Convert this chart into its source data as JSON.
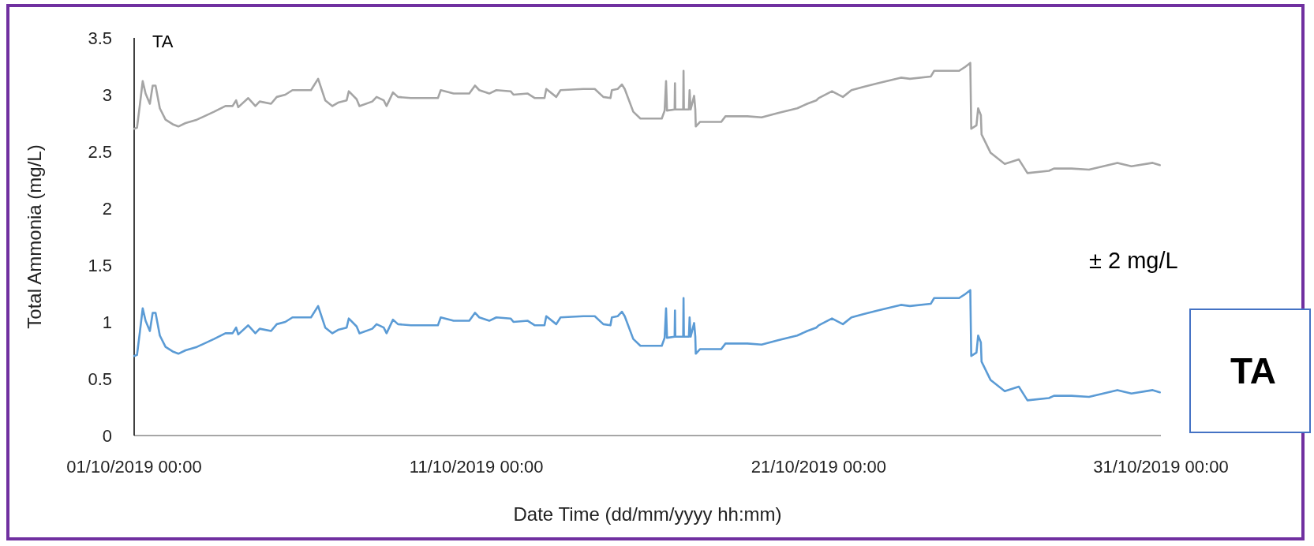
{
  "chart_data": {
    "type": "line",
    "xlabel": "Date Time (dd/mm/yyyy hh:mm)",
    "ylabel": "Total Ammonia (mg/L)",
    "annotations": [
      "TA",
      "± 2 mg/L",
      "TA"
    ],
    "xlim": [
      "2019-10-01T00:00",
      "2019-10-31T00:00"
    ],
    "xticks": [
      {
        "value": "2019-10-01T00:00",
        "label": "01/10/2019 00:00"
      },
      {
        "value": "2019-10-11T00:00",
        "label": "11/10/2019 00:00"
      },
      {
        "value": "2019-10-21T00:00",
        "label": "21/10/2019 00:00"
      },
      {
        "value": "2019-10-31T00:00",
        "label": "31/10/2019 00:00"
      }
    ],
    "ylim": [
      0,
      3.5
    ],
    "yticks": [
      0,
      0.5,
      1,
      1.5,
      2,
      2.5,
      3,
      3.5
    ],
    "grid": false,
    "marker": "none",
    "line_style": "solid",
    "x": [
      "2019-10-01T00:00",
      "2019-10-01T02:00",
      "2019-10-01T04:00",
      "2019-10-01T06:00",
      "2019-10-01T08:00",
      "2019-10-01T11:00",
      "2019-10-01T13:00",
      "2019-10-01T15:00",
      "2019-10-01T18:00",
      "2019-10-01T22:00",
      "2019-10-02T03:00",
      "2019-10-02T07:00",
      "2019-10-02T12:00",
      "2019-10-02T20:00",
      "2019-10-03T08:00",
      "2019-10-03T16:00",
      "2019-10-03T21:00",
      "2019-10-03T23:30",
      "2019-10-04T01:00",
      "2019-10-04T08:00",
      "2019-10-04T13:00",
      "2019-10-04T16:00",
      "2019-10-05T00:00",
      "2019-10-05T04:00",
      "2019-10-05T10:00",
      "2019-10-05T15:00",
      "2019-10-06T04:00",
      "2019-10-06T09:00",
      "2019-10-06T14:00",
      "2019-10-06T19:00",
      "2019-10-06T23:00",
      "2019-10-07T05:00",
      "2019-10-07T06:30",
      "2019-10-07T12:00",
      "2019-10-07T14:00",
      "2019-10-07T23:00",
      "2019-10-08T02:00",
      "2019-10-08T07:00",
      "2019-10-08T09:00",
      "2019-10-08T13:30",
      "2019-10-08T17:00",
      "2019-10-09T02:00",
      "2019-10-09T21:00",
      "2019-10-09T23:00",
      "2019-10-10T08:00",
      "2019-10-10T19:00",
      "2019-10-10T23:00",
      "2019-10-11T02:00",
      "2019-10-11T09:00",
      "2019-10-11T14:00",
      "2019-10-12T00:00",
      "2019-10-12T02:00",
      "2019-10-12T12:00",
      "2019-10-12T17:00",
      "2019-10-12T23:45",
      "2019-10-13T01:00",
      "2019-10-13T08:00",
      "2019-10-13T11:00",
      "2019-10-14T03:00",
      "2019-10-14T11:00",
      "2019-10-14T17:00",
      "2019-10-14T22:00",
      "2019-10-14T23:00",
      "2019-10-15T03:00",
      "2019-10-15T06:00",
      "2019-10-15T08:00",
      "2019-10-15T14:00",
      "2019-10-15T19:00",
      "2019-10-16T10:00",
      "2019-10-16T12:00",
      "2019-10-16T13:00",
      "2019-10-16T13:40",
      "2019-10-16T19:00",
      "2019-10-16T19:15",
      "2019-10-16T19:30",
      "2019-10-17T01:00",
      "2019-10-17T01:15",
      "2019-10-17T01:30",
      "2019-10-17T05:00",
      "2019-10-17T05:30",
      "2019-10-17T06:15",
      "2019-10-17T08:40",
      "2019-10-17T09:30",
      "2019-10-17T09:50",
      "2019-10-17T12:45",
      "2019-10-18T03:40",
      "2019-10-18T06:40",
      "2019-10-18T22:00",
      "2019-10-19T08:00",
      "2019-10-19T20:00",
      "2019-10-20T09:00",
      "2019-10-20T16:00",
      "2019-10-20T22:20",
      "2019-10-21T00:00",
      "2019-10-21T09:20",
      "2019-10-21T17:00",
      "2019-10-21T23:00",
      "2019-10-22T07:40",
      "2019-10-22T17:30",
      "2019-10-23T09:40",
      "2019-10-23T16:00",
      "2019-10-24T06:40",
      "2019-10-24T09:00",
      "2019-10-25T02:30",
      "2019-10-25T06:15",
      "2019-10-25T10:20",
      "2019-10-25T11:00",
      "2019-10-25T14:40",
      "2019-10-25T15:50",
      "2019-10-25T17:45",
      "2019-10-25T18:15",
      "2019-10-26T00:30",
      "2019-10-26T10:30",
      "2019-10-26T20:25",
      "2019-10-27T02:25",
      "2019-10-27T17:30",
      "2019-10-27T21:00",
      "2019-10-28T09:20",
      "2019-10-28T21:35",
      "2019-10-29T17:30",
      "2019-10-30T03:20",
      "2019-10-30T18:15",
      "2019-10-30T23:15"
    ],
    "series": [
      {
        "color": "#a5a5a5",
        "values": [
          2.7,
          2.71,
          2.91,
          3.12,
          3.01,
          2.92,
          3.08,
          3.08,
          2.88,
          2.78,
          2.74,
          2.72,
          2.75,
          2.78,
          2.85,
          2.9,
          2.9,
          2.95,
          2.89,
          2.97,
          2.9,
          2.94,
          2.92,
          2.98,
          3.0,
          3.04,
          3.04,
          3.14,
          2.95,
          2.9,
          2.93,
          2.95,
          3.03,
          2.96,
          2.9,
          2.94,
          2.98,
          2.95,
          2.9,
          3.02,
          2.98,
          2.97,
          2.97,
          3.04,
          3.01,
          3.01,
          3.08,
          3.04,
          3.01,
          3.04,
          3.03,
          3.0,
          3.01,
          2.97,
          2.97,
          3.05,
          2.98,
          3.04,
          3.05,
          3.05,
          2.98,
          2.97,
          3.04,
          3.05,
          3.09,
          3.05,
          2.85,
          2.79,
          2.79,
          2.86,
          3.12,
          2.86,
          2.87,
          3.1,
          2.87,
          2.87,
          3.21,
          2.87,
          2.87,
          3.04,
          2.87,
          2.99,
          2.87,
          2.72,
          2.76,
          2.76,
          2.81,
          2.81,
          2.8,
          2.84,
          2.88,
          2.92,
          2.95,
          2.97,
          3.03,
          2.98,
          3.04,
          3.07,
          3.1,
          3.15,
          3.14,
          3.16,
          3.21,
          3.21,
          3.24,
          3.28,
          2.7,
          2.73,
          2.88,
          2.82,
          2.65,
          2.49,
          2.39,
          2.43,
          2.31,
          2.33,
          2.35,
          2.35,
          2.34,
          2.4,
          2.37,
          2.4,
          2.38
        ]
      },
      {
        "color": "#5b9bd5",
        "values": [
          0.7,
          0.71,
          0.91,
          1.12,
          1.01,
          0.92,
          1.08,
          1.08,
          0.88,
          0.78,
          0.74,
          0.72,
          0.75,
          0.78,
          0.85,
          0.9,
          0.9,
          0.95,
          0.89,
          0.97,
          0.9,
          0.94,
          0.92,
          0.98,
          1.0,
          1.04,
          1.04,
          1.14,
          0.95,
          0.9,
          0.93,
          0.95,
          1.03,
          0.96,
          0.9,
          0.94,
          0.98,
          0.95,
          0.9,
          1.02,
          0.98,
          0.97,
          0.97,
          1.04,
          1.01,
          1.01,
          1.08,
          1.04,
          1.01,
          1.04,
          1.03,
          1.0,
          1.01,
          0.97,
          0.97,
          1.05,
          0.98,
          1.04,
          1.05,
          1.05,
          0.98,
          0.97,
          1.04,
          1.05,
          1.09,
          1.05,
          0.85,
          0.79,
          0.79,
          0.86,
          1.12,
          0.86,
          0.87,
          1.1,
          0.87,
          0.87,
          1.21,
          0.87,
          0.87,
          1.04,
          0.87,
          0.99,
          0.87,
          0.72,
          0.76,
          0.76,
          0.81,
          0.81,
          0.8,
          0.84,
          0.88,
          0.92,
          0.95,
          0.97,
          1.03,
          0.98,
          1.04,
          1.07,
          1.1,
          1.15,
          1.14,
          1.16,
          1.21,
          1.21,
          1.24,
          1.28,
          0.7,
          0.73,
          0.88,
          0.82,
          0.65,
          0.49,
          0.39,
          0.43,
          0.31,
          0.33,
          0.35,
          0.35,
          0.34,
          0.4,
          0.37,
          0.4,
          0.38
        ]
      }
    ]
  }
}
